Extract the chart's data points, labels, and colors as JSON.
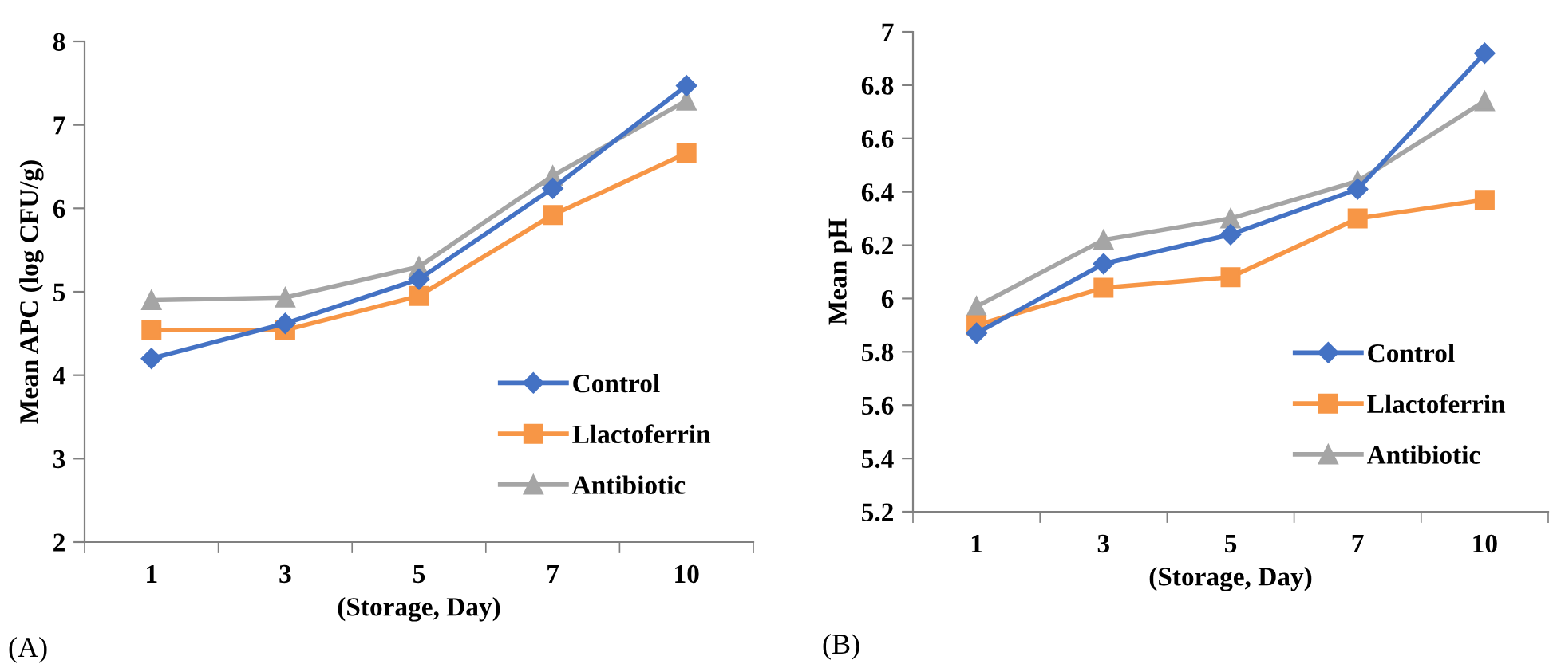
{
  "chart_data": [
    {
      "type": "line",
      "xlabel": "(Storage, Day)",
      "ylabel": "Mean APC (log CFU/g)",
      "annotations": [
        "(A)"
      ],
      "categories": [
        "1",
        "3",
        "5",
        "7",
        "10"
      ],
      "ylim": [
        2,
        8
      ],
      "yticks": [
        2,
        3,
        4,
        5,
        6,
        7,
        8
      ],
      "grid": false,
      "legend": "bottom right",
      "line_style": "solid",
      "series": [
        {
          "name": "Control",
          "color": "#4472c4",
          "marker": "diamond",
          "values": [
            4.2,
            4.62,
            5.15,
            6.24,
            7.47
          ]
        },
        {
          "name": "Llactoferrin",
          "color": "#f79646",
          "marker": "square",
          "values": [
            4.54,
            4.54,
            4.95,
            5.92,
            6.66
          ]
        },
        {
          "name": "Antibiotic",
          "color": "#a5a5a5",
          "marker": "triangle",
          "values": [
            4.9,
            4.93,
            5.3,
            6.39,
            7.29
          ]
        }
      ]
    },
    {
      "type": "line",
      "xlabel": "(Storage, Day)",
      "ylabel": "Mean pH",
      "annotations": [
        "(B)"
      ],
      "categories": [
        "1",
        "3",
        "5",
        "7",
        "10"
      ],
      "ylim": [
        5.2,
        7
      ],
      "yticks": [
        5.2,
        5.4,
        5.6,
        5.8,
        6,
        6.2,
        6.4,
        6.6,
        6.8,
        7
      ],
      "grid": false,
      "legend": "bottom right",
      "line_style": "solid",
      "series": [
        {
          "name": "Control",
          "color": "#4472c4",
          "marker": "diamond",
          "values": [
            5.87,
            6.13,
            6.24,
            6.41,
            6.92
          ]
        },
        {
          "name": "Llactoferrin",
          "color": "#f79646",
          "marker": "square",
          "values": [
            5.9,
            6.04,
            6.08,
            6.3,
            6.37
          ]
        },
        {
          "name": "Antibiotic",
          "color": "#a5a5a5",
          "marker": "triangle",
          "values": [
            5.97,
            6.22,
            6.3,
            6.44,
            6.74
          ]
        }
      ]
    }
  ]
}
